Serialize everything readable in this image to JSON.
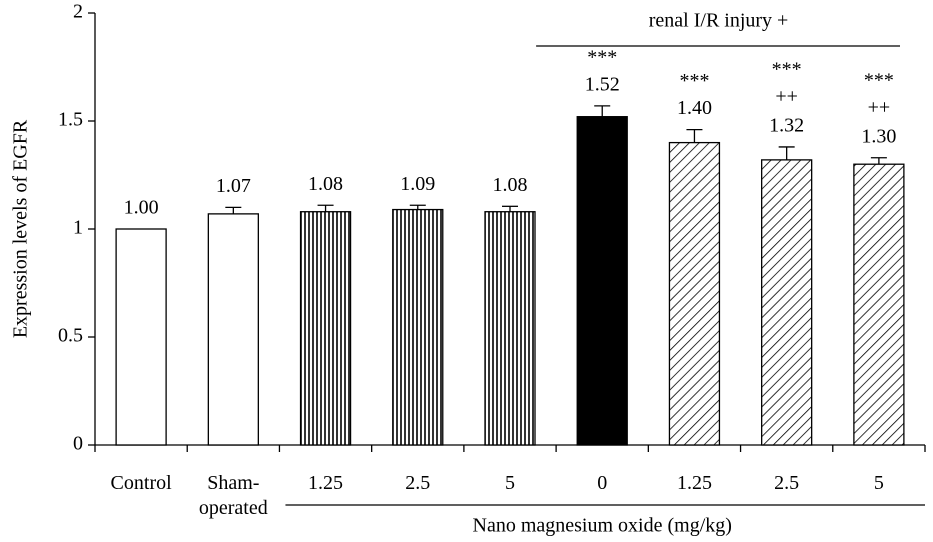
{
  "chart_data": {
    "type": "bar",
    "y_label": "Expression levels of EGFR",
    "categories": [
      "Control",
      "Sham-operated",
      "1.25",
      "2.5",
      "5",
      "0",
      "1.25",
      "2.5",
      "5"
    ],
    "values": [
      1.0,
      1.07,
      1.08,
      1.09,
      1.08,
      1.52,
      1.4,
      1.32,
      1.3
    ],
    "value_labels": [
      "1.00",
      "1.07",
      "1.08",
      "1.09",
      "1.08",
      "1.52",
      "1.40",
      "1.32",
      "1.30"
    ],
    "errors": [
      0,
      0.03,
      0.03,
      0.02,
      0.025,
      0.05,
      0.06,
      0.06,
      0.03
    ],
    "patterns": [
      "white",
      "white",
      "vertical",
      "vertical",
      "vertical",
      "black",
      "diagonal",
      "diagonal",
      "diagonal"
    ],
    "significance": [
      null,
      null,
      null,
      null,
      null,
      "***",
      "***",
      "***",
      "***"
    ],
    "significance2": [
      null,
      null,
      null,
      null,
      null,
      null,
      null,
      "++",
      "++"
    ],
    "groups": [
      {
        "label": "renal I/R injury +",
        "from": 5,
        "to": 8,
        "position": "top"
      },
      {
        "label": "Nano magnesium oxide (mg/kg)",
        "from": 2,
        "to": 8,
        "position": "bottom"
      }
    ],
    "ylim": [
      0,
      2
    ],
    "yticks": [
      0,
      0.5,
      1,
      1.5,
      2
    ]
  }
}
